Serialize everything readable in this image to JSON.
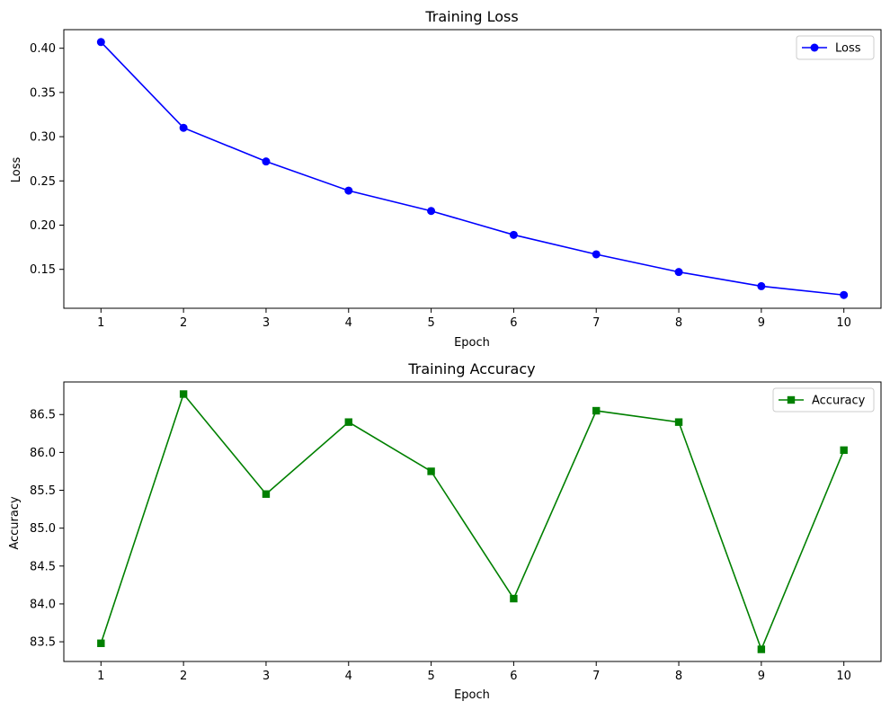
{
  "chart_data": [
    {
      "type": "line",
      "title": "Training Loss",
      "xlabel": "Epoch",
      "ylabel": "Loss",
      "x": [
        1,
        2,
        3,
        4,
        5,
        6,
        7,
        8,
        9,
        10
      ],
      "xticks": [
        "1",
        "2",
        "3",
        "4",
        "5",
        "6",
        "7",
        "8",
        "9",
        "10"
      ],
      "xlim": [
        0.55,
        10.45
      ],
      "ylim": [
        0.106,
        0.421
      ],
      "yticks": [
        "0.15",
        "0.20",
        "0.25",
        "0.30",
        "0.35",
        "0.40"
      ],
      "ytick_values": [
        0.15,
        0.2,
        0.25,
        0.3,
        0.35,
        0.4
      ],
      "series": [
        {
          "name": "Loss",
          "color": "#0000ff",
          "marker": "circle",
          "values": [
            0.407,
            0.31,
            0.272,
            0.239,
            0.216,
            0.189,
            0.167,
            0.147,
            0.131,
            0.121
          ]
        }
      ],
      "legend": "upper right",
      "grid": false
    },
    {
      "type": "line",
      "title": "Training Accuracy",
      "xlabel": "Epoch",
      "ylabel": "Accuracy",
      "x": [
        1,
        2,
        3,
        4,
        5,
        6,
        7,
        8,
        9,
        10
      ],
      "xticks": [
        "1",
        "2",
        "3",
        "4",
        "5",
        "6",
        "7",
        "8",
        "9",
        "10"
      ],
      "xlim": [
        0.55,
        10.45
      ],
      "ylim": [
        83.24,
        86.93
      ],
      "yticks": [
        "83.5",
        "84.0",
        "84.5",
        "85.0",
        "85.5",
        "86.0",
        "86.5"
      ],
      "ytick_values": [
        83.5,
        84.0,
        84.5,
        85.0,
        85.5,
        86.0,
        86.5
      ],
      "series": [
        {
          "name": "Accuracy",
          "color": "#008000",
          "marker": "square",
          "values": [
            83.48,
            86.77,
            85.45,
            86.4,
            85.75,
            84.07,
            86.55,
            86.4,
            83.4,
            86.03
          ]
        }
      ],
      "legend": "upper right",
      "grid": false
    }
  ]
}
